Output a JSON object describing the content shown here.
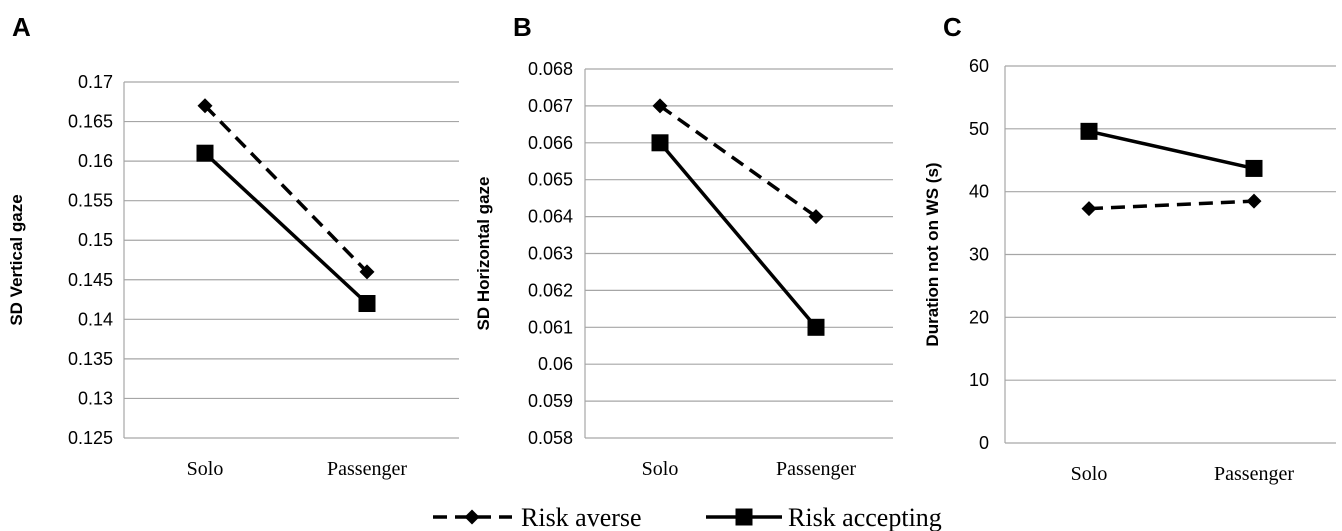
{
  "chart_data": [
    {
      "type": "line",
      "panel": "A",
      "ylabel": "SD Vertical gaze",
      "categories": [
        "Solo",
        "Passenger"
      ],
      "ylim": [
        0.125,
        0.17
      ],
      "yticks": [
        "0.125",
        "0.13",
        "0.135",
        "0.14",
        "0.145",
        "0.15",
        "0.155",
        "0.16",
        "0.165",
        "0.17"
      ],
      "series": [
        {
          "name": "Risk averse",
          "values": [
            0.167,
            0.146
          ]
        },
        {
          "name": "Risk accepting",
          "values": [
            0.161,
            0.142
          ]
        }
      ]
    },
    {
      "type": "line",
      "panel": "B",
      "ylabel": "SD Horizontal gaze",
      "categories": [
        "Solo",
        "Passenger"
      ],
      "ylim": [
        0.058,
        0.068
      ],
      "yticks": [
        "0.058",
        "0.059",
        "0.06",
        "0.061",
        "0.062",
        "0.063",
        "0.064",
        "0.065",
        "0.066",
        "0.067",
        "0.068"
      ],
      "series": [
        {
          "name": "Risk averse",
          "values": [
            0.067,
            0.064
          ]
        },
        {
          "name": "Risk accepting",
          "values": [
            0.066,
            0.061
          ]
        }
      ]
    },
    {
      "type": "line",
      "panel": "C",
      "ylabel": "Duration not on WS (s)",
      "categories": [
        "Solo",
        "Passenger"
      ],
      "ylim": [
        0,
        60
      ],
      "yticks": [
        "0",
        "10",
        "20",
        "30",
        "40",
        "50",
        "60"
      ],
      "series": [
        {
          "name": "Risk averse",
          "values": [
            37.3,
            38.5
          ]
        },
        {
          "name": "Risk accepting",
          "values": [
            49.6,
            43.7
          ]
        }
      ]
    }
  ],
  "legend": [
    {
      "label": "Risk averse",
      "style": "dashed",
      "marker": "diamond"
    },
    {
      "label": "Risk accepting",
      "style": "solid",
      "marker": "square"
    }
  ],
  "colors": {
    "lines": "#000000",
    "grid": "#a6a6a6"
  }
}
